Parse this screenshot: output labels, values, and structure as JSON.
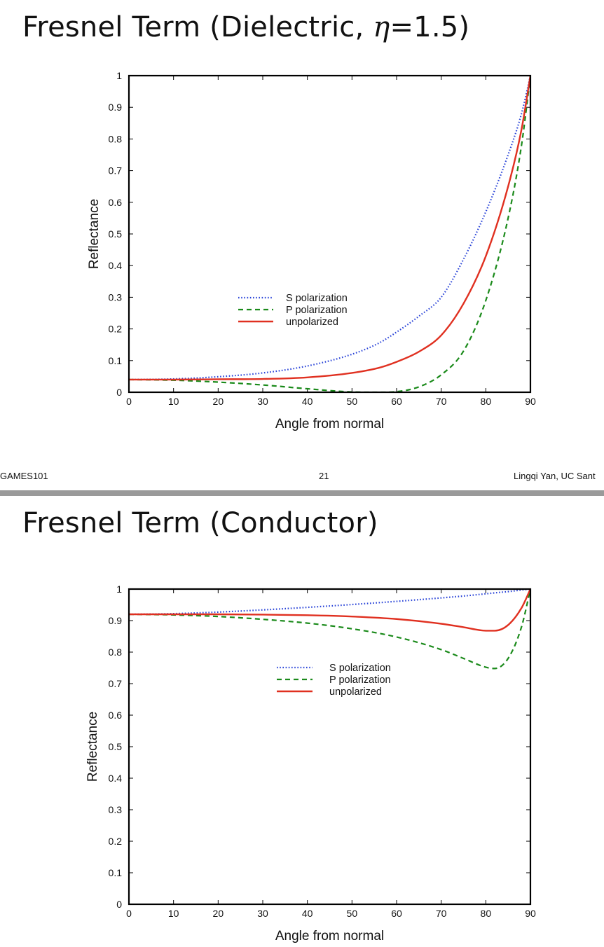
{
  "slides": [
    {
      "title_prefix": "Fresnel Term (Dielectric, ",
      "title_symbol": "η",
      "title_suffix": "=1.5)",
      "footer": {
        "left": "GAMES101",
        "center": "21",
        "right": "Lingqi Yan, UC Sant"
      }
    },
    {
      "title": "Fresnel Term (Conductor)"
    }
  ],
  "chart_data": [
    {
      "type": "line",
      "xlabel": "Angle from normal",
      "ylabel": "Reflectance",
      "xlim": [
        0,
        90
      ],
      "ylim": [
        0,
        1
      ],
      "xticks": [
        "0",
        "10",
        "20",
        "30",
        "40",
        "50",
        "60",
        "70",
        "80",
        "90"
      ],
      "yticks": [
        "0",
        "0.1",
        "0.2",
        "0.3",
        "0.4",
        "0.5",
        "0.6",
        "0.7",
        "0.8",
        "0.9",
        "1"
      ],
      "legend_position": "center",
      "x": [
        0,
        10,
        20,
        30,
        40,
        50,
        56,
        60,
        65,
        70,
        75,
        80,
        85,
        88,
        90
      ],
      "series": [
        {
          "name": "S polarization",
          "color": "#2a44d8",
          "dash": "dotted",
          "values": [
            0.04,
            0.042,
            0.049,
            0.061,
            0.083,
            0.12,
            0.155,
            0.19,
            0.24,
            0.3,
            0.42,
            0.57,
            0.75,
            0.88,
            1.0
          ]
        },
        {
          "name": "P polarization",
          "color": "#1a8a1a",
          "dash": "dashed",
          "values": [
            0.04,
            0.038,
            0.032,
            0.023,
            0.011,
            0.001,
            0.0,
            0.002,
            0.017,
            0.055,
            0.13,
            0.29,
            0.55,
            0.78,
            1.0
          ]
        },
        {
          "name": "unpolarized",
          "color": "#e03020",
          "dash": "solid",
          "values": [
            0.04,
            0.04,
            0.041,
            0.042,
            0.047,
            0.061,
            0.077,
            0.096,
            0.128,
            0.18,
            0.28,
            0.43,
            0.65,
            0.83,
            1.0
          ]
        }
      ]
    },
    {
      "type": "line",
      "xlabel": "Angle from normal",
      "ylabel": "Reflectance",
      "xlim": [
        0,
        90
      ],
      "ylim": [
        0,
        1
      ],
      "xticks": [
        "0",
        "10",
        "20",
        "30",
        "40",
        "50",
        "60",
        "70",
        "80",
        "90"
      ],
      "yticks": [
        "0",
        "0.1",
        "0.2",
        "0.3",
        "0.4",
        "0.5",
        "0.6",
        "0.7",
        "0.8",
        "0.9",
        "1"
      ],
      "legend_position": "upper center",
      "x": [
        0,
        10,
        20,
        30,
        40,
        50,
        60,
        70,
        75,
        80,
        82,
        85,
        88,
        90
      ],
      "series": [
        {
          "name": "S polarization",
          "color": "#2a44d8",
          "dash": "dotted",
          "values": [
            0.92,
            0.922,
            0.927,
            0.934,
            0.942,
            0.951,
            0.961,
            0.972,
            0.978,
            0.985,
            0.988,
            0.992,
            0.997,
            1.0
          ]
        },
        {
          "name": "P polarization",
          "color": "#1a8a1a",
          "dash": "dashed",
          "values": [
            0.92,
            0.918,
            0.913,
            0.904,
            0.892,
            0.874,
            0.848,
            0.808,
            0.78,
            0.752,
            0.748,
            0.78,
            0.88,
            1.0
          ]
        },
        {
          "name": "unpolarized",
          "color": "#e03020",
          "dash": "solid",
          "values": [
            0.92,
            0.92,
            0.92,
            0.919,
            0.917,
            0.913,
            0.905,
            0.89,
            0.879,
            0.868,
            0.868,
            0.886,
            0.94,
            1.0
          ]
        }
      ]
    }
  ]
}
